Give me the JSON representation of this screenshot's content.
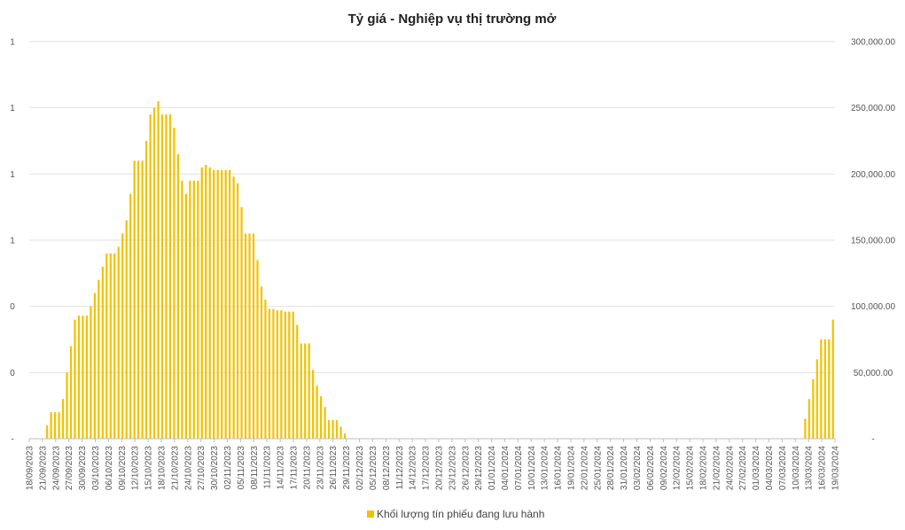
{
  "chart_data": {
    "type": "bar",
    "title": "Tỷ giá - Nghiệp vụ thị trường mở",
    "left_axis_tick_labels": [
      "-",
      "0",
      "0",
      "1",
      "1",
      "1",
      "1"
    ],
    "right_axis": {
      "ylim": [
        0,
        300000
      ],
      "tick_labels": [
        "-",
        "50,000.00",
        "100,000.00",
        "150,000.00",
        "200,000.00",
        "250,000.00",
        "300,000.00"
      ]
    },
    "x_tick_labels": [
      "18/09/2023",
      "21/09/2023",
      "24/09/2023",
      "27/09/2023",
      "30/09/2023",
      "03/10/2023",
      "06/10/2023",
      "09/10/2023",
      "12/10/2023",
      "15/10/2023",
      "18/10/2023",
      "21/10/2023",
      "24/10/2023",
      "27/10/2023",
      "30/10/2023",
      "02/11/2023",
      "05/11/2023",
      "08/11/2023",
      "11/11/2023",
      "14/11/2023",
      "17/11/2023",
      "20/11/2023",
      "23/11/2023",
      "26/11/2023",
      "29/11/2023",
      "02/12/2023",
      "05/12/2023",
      "08/12/2023",
      "11/12/2023",
      "14/12/2023",
      "17/12/2023",
      "20/12/2023",
      "23/12/2023",
      "26/12/2023",
      "29/12/2023",
      "01/01/2024",
      "04/01/2024",
      "07/01/2024",
      "10/01/2024",
      "13/01/2024",
      "16/01/2024",
      "19/01/2024",
      "22/01/2024",
      "25/01/2024",
      "28/01/2024",
      "31/01/2024",
      "03/02/2024",
      "06/02/2024",
      "09/02/2024",
      "12/02/2024",
      "15/02/2024",
      "18/02/2024",
      "21/02/2024",
      "24/02/2024",
      "27/02/2024",
      "01/03/2024",
      "04/03/2024",
      "07/03/2024",
      "10/03/2024",
      "13/03/2024",
      "16/03/2024",
      "19/03/2024"
    ],
    "series": [
      {
        "name": "Khối lượng tín phiếu đang lưu hành",
        "color": "#f2c200",
        "values": [
          0,
          0,
          0,
          0,
          10000,
          20000,
          20000,
          20000,
          30000,
          50000,
          70000,
          90000,
          93000,
          93000,
          93000,
          100000,
          110000,
          120000,
          130000,
          140000,
          140000,
          140000,
          145000,
          155000,
          165000,
          185000,
          210000,
          210000,
          210000,
          225000,
          245000,
          250000,
          255000,
          245000,
          245000,
          245000,
          235000,
          215000,
          195000,
          185000,
          195000,
          195000,
          195000,
          205000,
          207000,
          205000,
          203000,
          203000,
          203000,
          203000,
          203000,
          198000,
          193000,
          175000,
          155000,
          155000,
          155000,
          135000,
          115000,
          105000,
          98000,
          98000,
          97000,
          97000,
          96000,
          96000,
          96000,
          86000,
          72000,
          72000,
          72000,
          52000,
          40000,
          32000,
          24000,
          14000,
          14000,
          14000,
          9000,
          4000,
          0,
          0,
          0,
          0,
          0,
          0,
          0,
          0,
          0,
          0,
          0,
          0,
          0,
          0,
          0,
          0,
          0,
          0,
          0,
          0,
          0,
          0,
          0,
          0,
          0,
          0,
          0,
          0,
          0,
          0,
          0,
          0,
          0,
          0,
          0,
          0,
          0,
          0,
          0,
          0,
          0,
          0,
          0,
          0,
          0,
          0,
          0,
          0,
          0,
          0,
          0,
          0,
          0,
          0,
          0,
          0,
          0,
          0,
          0,
          0,
          0,
          0,
          0,
          0,
          0,
          0,
          0,
          0,
          0,
          0,
          0,
          0,
          0,
          0,
          0,
          0,
          0,
          0,
          0,
          0,
          0,
          0,
          0,
          0,
          0,
          0,
          0,
          0,
          0,
          0,
          0,
          0,
          0,
          0,
          0,
          0,
          0,
          0,
          0,
          0,
          0,
          0,
          0,
          0,
          0,
          0,
          0,
          0,
          0,
          0,
          0,
          0,
          0,
          0,
          0,
          15000,
          30000,
          45000,
          60000,
          75000,
          75000,
          75000,
          90000
        ]
      }
    ],
    "grid": true,
    "legend_position": "bottom"
  }
}
